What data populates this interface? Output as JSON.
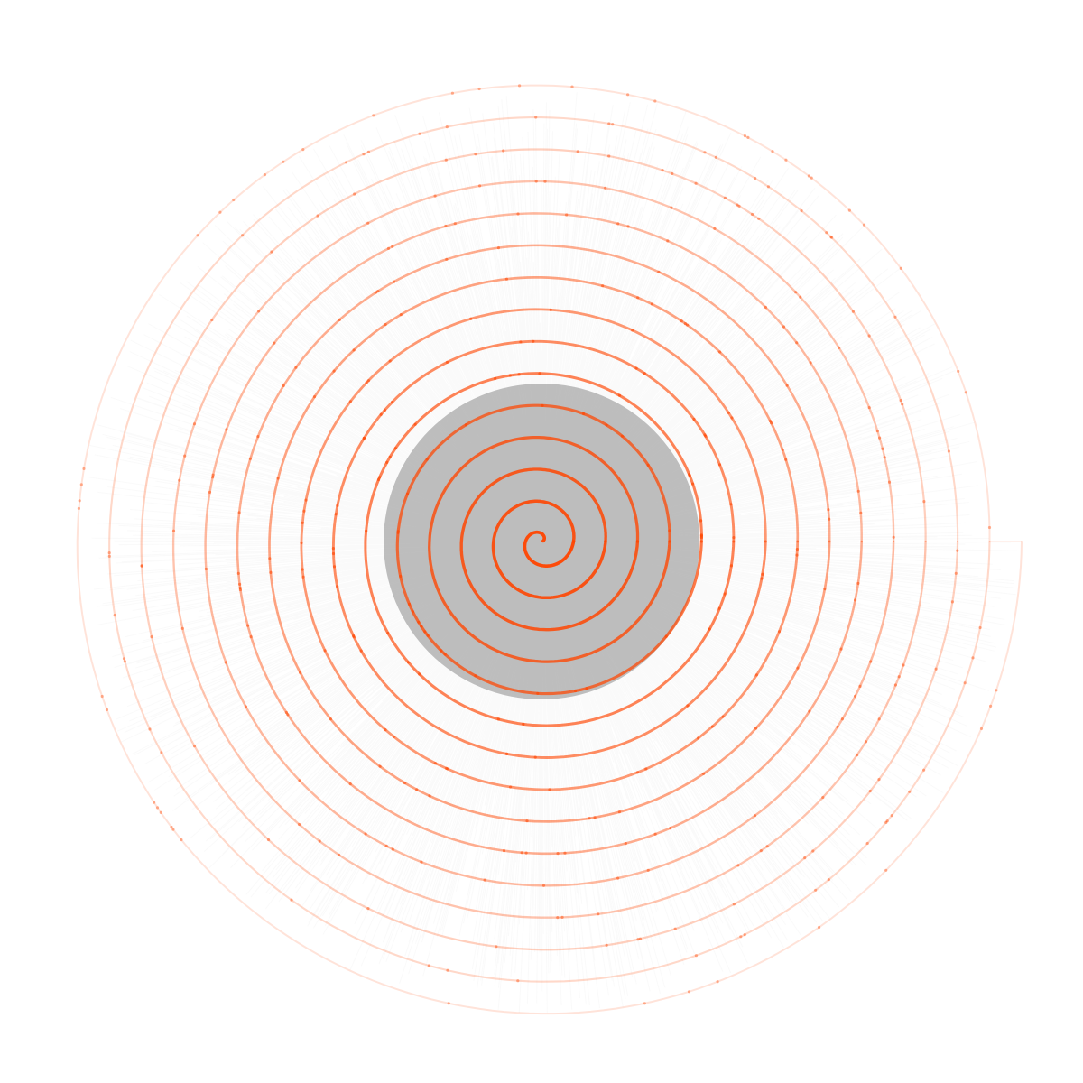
{
  "artwork": {
    "kind": "archimedean-spiral",
    "turns": 15,
    "rotation": "counter-clockwise-outward",
    "colors": {
      "background": "#ffffff",
      "rays": "#8c8c8c",
      "spiral": "#ff4500"
    }
  }
}
